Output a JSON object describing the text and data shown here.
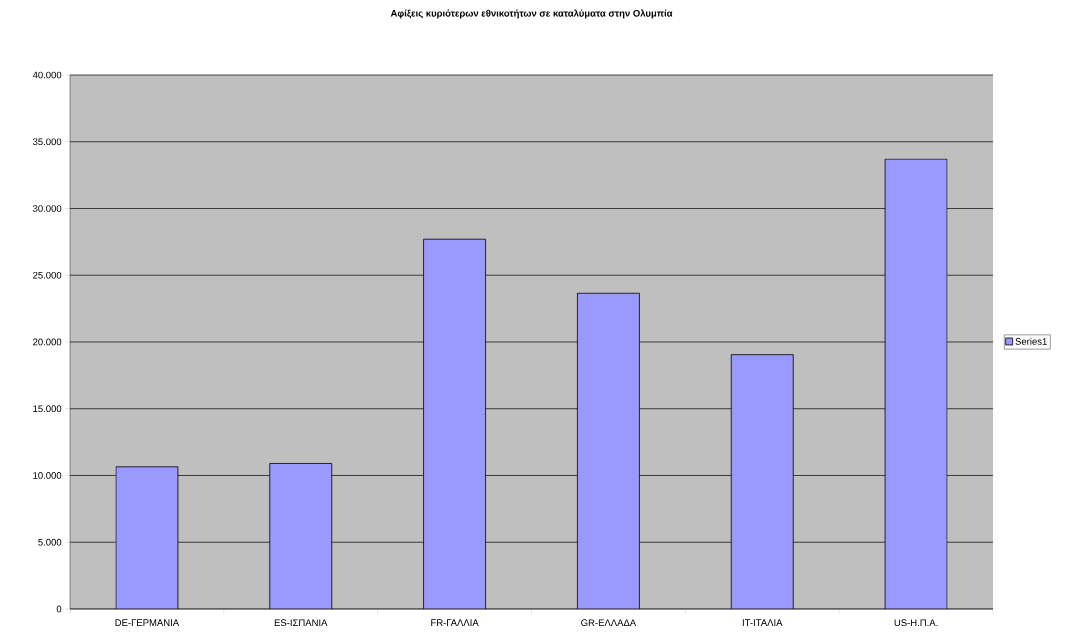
{
  "chart_data": {
    "type": "bar",
    "title": "Αφίξεις κυριότερων εθνικοτήτων σε καταλύματα στην Ολυμπία",
    "categories": [
      "DE-ΓΕΡΜΑΝΙΑ",
      "ES-ΙΣΠΑΝΙΑ",
      "FR-ΓΑΛΛΙΑ",
      "GR-ΕΛΛΑΔΑ",
      "IT-ΙΤΑΛΙΑ",
      "US-Η.Π.Α."
    ],
    "series": [
      {
        "name": "Series1",
        "color": "#9999ff",
        "values": [
          10650,
          10900,
          27700,
          23650,
          19050,
          33700
        ]
      }
    ],
    "ylim": [
      0,
      40000
    ],
    "yticks": [
      0,
      {
        "value": 5000,
        "label": "5.000"
      },
      {
        "value": 10000,
        "label": "10.000"
      },
      {
        "value": 15000,
        "label": "15.000"
      },
      {
        "value": 20000,
        "label": "20.000"
      },
      {
        "value": 25000,
        "label": "25.000"
      },
      {
        "value": 30000,
        "label": "30.000"
      },
      {
        "value": 35000,
        "label": "35.000"
      },
      {
        "value": 40000,
        "label": "40.000"
      }
    ],
    "grid": "y",
    "legend": "right"
  }
}
